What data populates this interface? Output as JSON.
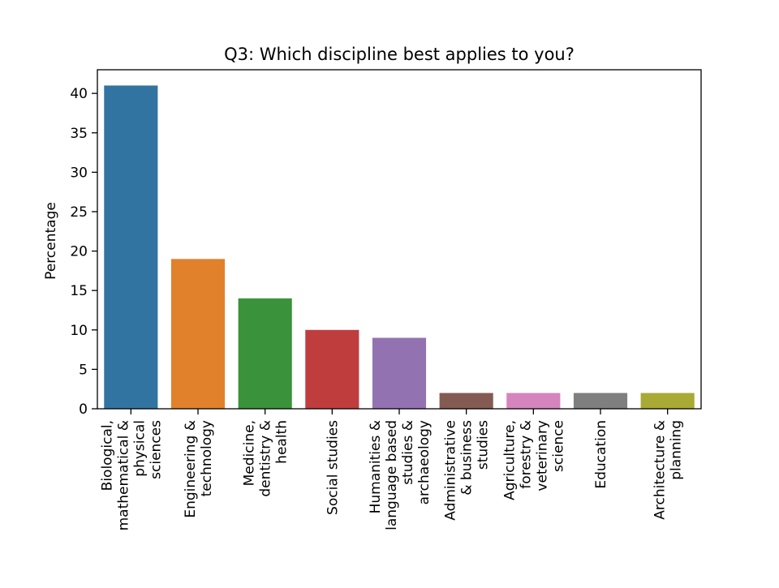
{
  "chart_data": {
    "type": "bar",
    "title": "Q3: Which discipline best applies to you?",
    "xlabel": "",
    "ylabel": "Percentage",
    "ylim": [
      0,
      43
    ],
    "yticks": [
      0,
      5,
      10,
      15,
      20,
      25,
      30,
      35,
      40
    ],
    "grid": false,
    "categories": [
      [
        "Biological,",
        "mathematical &",
        "physical",
        "sciences"
      ],
      [
        "Engineering &",
        "technology"
      ],
      [
        "Medicine,",
        "dentistry &",
        "health"
      ],
      [
        "Social studies"
      ],
      [
        "Humanities &",
        "language based",
        "studies &",
        "archaeology"
      ],
      [
        "Administrative",
        "& business",
        "studies"
      ],
      [
        "Agriculture,",
        "forestry &",
        "veterinary",
        "science"
      ],
      [
        "Education"
      ],
      [
        "Architecture &",
        "planning"
      ]
    ],
    "values": [
      41,
      19,
      14,
      10,
      9,
      2,
      2,
      2,
      2
    ],
    "colors": [
      "#3274a1",
      "#e1812c",
      "#3a923a",
      "#c03d3e",
      "#9372b2",
      "#845b53",
      "#d684bd",
      "#7f7f7f",
      "#a9aa35"
    ]
  }
}
